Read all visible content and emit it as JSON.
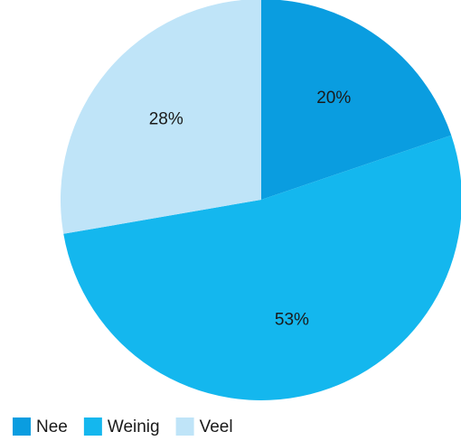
{
  "chart_data": {
    "type": "pie",
    "categories": [
      "Nee",
      "Weinig",
      "Veel"
    ],
    "values": [
      20,
      53,
      28
    ],
    "value_labels": [
      "20%",
      "53%",
      "28%"
    ],
    "colors": [
      "#0a9de0",
      "#14b7ee",
      "#bfe4f8"
    ],
    "legend": "bottom-left"
  }
}
